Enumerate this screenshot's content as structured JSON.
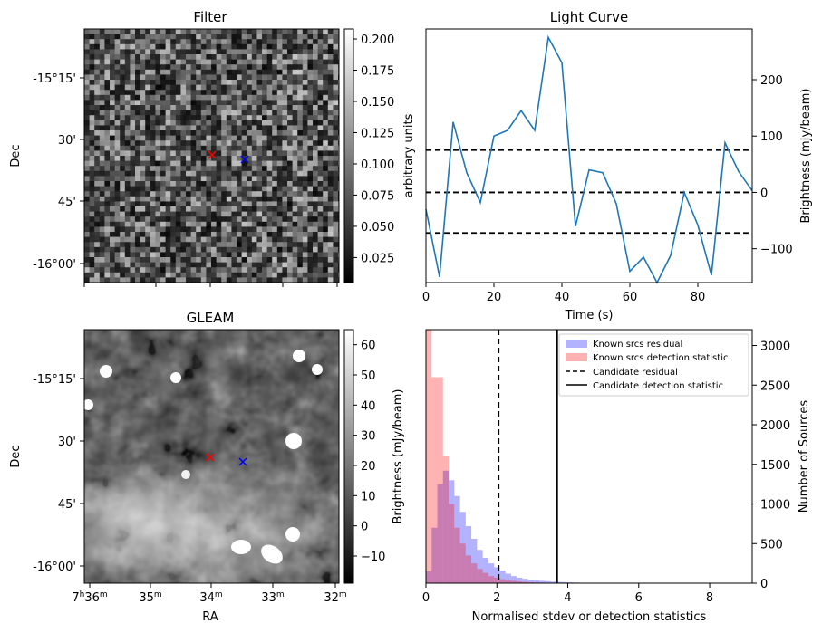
{
  "panels": {
    "filter": {
      "title": "Filter",
      "ylabel": "Dec",
      "ytick_labels": [
        "-15°15'",
        "30'",
        "45'",
        "-16°00'"
      ],
      "colorbar": {
        "label": "arbitrary units",
        "ticks": [
          0.025,
          0.05,
          0.075,
          0.1,
          0.125,
          0.15,
          0.175,
          0.2
        ],
        "tick_labels": [
          "0.025",
          "0.050",
          "0.075",
          "0.100",
          "0.125",
          "0.150",
          "0.175",
          "0.200"
        ],
        "range": [
          0.005,
          0.208
        ]
      }
    },
    "gleam": {
      "title": "GLEAM",
      "xlabel": "RA",
      "ylabel": "Dec",
      "ytick_labels": [
        "-15°15'",
        "30'",
        "45'",
        "-16°00'"
      ],
      "xtick_labels": [
        {
          "base": "7",
          "h": "h",
          "m1": "36",
          "m": "m"
        },
        {
          "base": "35",
          "m": "m"
        },
        {
          "base": "34",
          "m": "m"
        },
        {
          "base": "33",
          "m": "m"
        },
        {
          "base": "32",
          "m": "m"
        }
      ],
      "colorbar": {
        "label": "Brightness (mJy/beam)",
        "ticks": [
          -10,
          0,
          10,
          20,
          30,
          40,
          50,
          60
        ],
        "tick_labels": [
          "−10",
          "0",
          "10",
          "20",
          "30",
          "40",
          "50",
          "60"
        ],
        "range": [
          -19,
          65
        ]
      }
    }
  },
  "markers": {
    "red_color": "#ff0000",
    "blue_color": "#0000ff"
  },
  "chart_data": [
    {
      "type": "line",
      "title": "Light Curve",
      "xlabel": "Time (s)",
      "ylabel": "Brightness (mJy/beam)",
      "xlim": [
        0,
        96
      ],
      "ylim": [
        -160,
        290
      ],
      "xticks": [
        0,
        20,
        40,
        60,
        80
      ],
      "yticks": [
        -100,
        0,
        100,
        200
      ],
      "ytick_labels": [
        "−100",
        "0",
        "100",
        "200"
      ],
      "series": [
        {
          "color": "#1f77b4",
          "x": [
            0,
            4,
            8,
            12,
            16,
            20,
            24,
            28,
            32,
            36,
            40,
            44,
            48,
            52,
            56,
            60,
            64,
            68,
            72,
            76,
            80,
            84,
            88,
            92,
            96
          ],
          "y": [
            -30,
            -150,
            125,
            35,
            -18,
            100,
            110,
            145,
            110,
            275,
            230,
            -60,
            40,
            35,
            -20,
            -140,
            -115,
            -160,
            -112,
            0,
            -58,
            -147,
            88,
            37,
            3
          ]
        }
      ],
      "hlines": [
        {
          "y": 75,
          "style": "dashed"
        },
        {
          "y": 0,
          "style": "dashed"
        },
        {
          "y": -72,
          "style": "dashed"
        }
      ]
    },
    {
      "type": "bar",
      "xlabel": "Normalised stdev or detection statistics",
      "ylabel": "Number of Sources",
      "xlim": [
        0,
        9.2
      ],
      "ylim": [
        0,
        3200
      ],
      "xticks": [
        0,
        2,
        4,
        6,
        8
      ],
      "yticks": [
        0,
        500,
        1000,
        1500,
        2000,
        2500,
        3000
      ],
      "bin_width": 0.16,
      "legend_placement": "top-right",
      "legend": [
        "Known srcs residual",
        "Known srcs detection statistic",
        "Candidate residual",
        "Candidate detection statistic"
      ],
      "series": [
        {
          "name": "Known srcs residual",
          "color": "#0000ff",
          "opacity": 0.3,
          "values": [
            150,
            700,
            1250,
            1420,
            1300,
            1100,
            900,
            720,
            560,
            420,
            320,
            250,
            200,
            160,
            120,
            90,
            70,
            55,
            45,
            38,
            30,
            25,
            20,
            15,
            12,
            10,
            8,
            6,
            5,
            4
          ]
        },
        {
          "name": "Known srcs detection statistic",
          "color": "#ff0000",
          "opacity": 0.3,
          "values": [
            3200,
            2600,
            2600,
            1600,
            1000,
            700,
            500,
            350,
            250,
            180,
            130,
            90,
            70,
            50,
            40,
            30,
            22,
            16,
            12,
            10,
            8,
            6,
            5,
            4,
            3,
            3,
            2,
            2,
            2,
            2
          ]
        }
      ],
      "vlines": [
        {
          "name": "Candidate residual",
          "x": 2.05,
          "style": "dashed"
        },
        {
          "name": "Candidate detection statistic",
          "x": 3.7,
          "style": "solid"
        }
      ]
    }
  ]
}
